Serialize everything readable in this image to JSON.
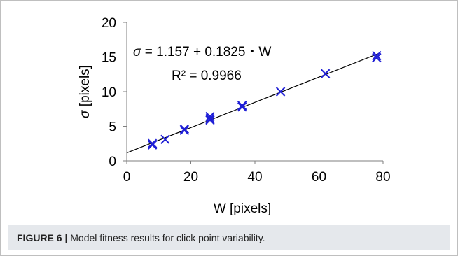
{
  "chart_data": {
    "type": "scatter",
    "xlabel": "W [pixels]",
    "ylabel_symbol": "σ",
    "ylabel_unit": "[pixels]",
    "xlim": [
      0,
      80
    ],
    "ylim": [
      0,
      20
    ],
    "x_ticks": [
      "0",
      "20",
      "40",
      "60",
      "80"
    ],
    "y_ticks": [
      "0",
      "5",
      "10",
      "15",
      "20"
    ],
    "grid": false,
    "marker": "x",
    "marker_color": "#1f1fd6",
    "fit_line": {
      "intercept": 1.157,
      "slope": 0.1825,
      "color": "#000000"
    },
    "equation": {
      "symbol": "σ",
      "rhs": " = 1.157 + 0.1825・W",
      "r2_label": "R² = 0.9966"
    },
    "points": [
      {
        "x": 8,
        "y": 2.3
      },
      {
        "x": 8,
        "y": 2.5
      },
      {
        "x": 12,
        "y": 3.1
      },
      {
        "x": 18,
        "y": 4.4
      },
      {
        "x": 18,
        "y": 4.6
      },
      {
        "x": 26,
        "y": 5.9
      },
      {
        "x": 26,
        "y": 6.1
      },
      {
        "x": 26,
        "y": 6.4
      },
      {
        "x": 36,
        "y": 7.8
      },
      {
        "x": 36,
        "y": 8.0
      },
      {
        "x": 48,
        "y": 10.0
      },
      {
        "x": 62,
        "y": 12.6
      },
      {
        "x": 78,
        "y": 14.9
      },
      {
        "x": 78,
        "y": 15.2
      }
    ]
  },
  "caption": {
    "label": "FIGURE 6 |",
    "text": " Model fitness results for click point variability."
  }
}
